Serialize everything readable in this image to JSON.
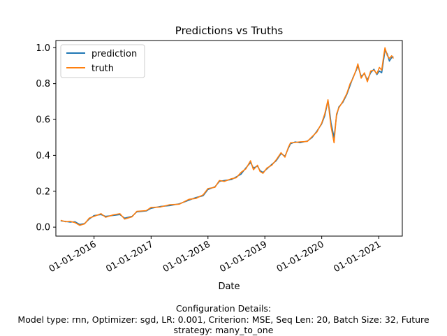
{
  "chart_data": {
    "type": "line",
    "title": "Predictions vs Truths",
    "xlabel": "Date",
    "ylabel": "",
    "xlim": [
      "2015-05-01",
      "2021-06-01"
    ],
    "ylim": [
      -0.05,
      1.04
    ],
    "x_ticks": [
      "01-01-2016",
      "01-01-2017",
      "01-01-2018",
      "01-01-2019",
      "01-01-2020",
      "01-01-2021"
    ],
    "y_ticks": [
      "0.0",
      "0.2",
      "0.4",
      "0.6",
      "0.8",
      "1.0"
    ],
    "y_tick_values": [
      0.0,
      0.2,
      0.4,
      0.6,
      0.8,
      1.0
    ],
    "grid": false,
    "legend": "top-left",
    "series": [
      {
        "name": "prediction",
        "color": "#1f77b4",
        "points": [
          [
            "2015-06-01",
            0.035
          ],
          [
            "2015-07-01",
            0.032
          ],
          [
            "2015-08-01",
            0.028
          ],
          [
            "2015-09-01",
            0.03
          ],
          [
            "2015-10-01",
            0.015
          ],
          [
            "2015-11-01",
            0.02
          ],
          [
            "2015-12-01",
            0.045
          ],
          [
            "2016-01-01",
            0.065
          ],
          [
            "2016-02-15",
            0.07
          ],
          [
            "2016-03-15",
            0.06
          ],
          [
            "2016-05-01",
            0.065
          ],
          [
            "2016-06-15",
            0.07
          ],
          [
            "2016-07-15",
            0.05
          ],
          [
            "2016-09-01",
            0.06
          ],
          [
            "2016-10-01",
            0.085
          ],
          [
            "2016-12-01",
            0.09
          ],
          [
            "2017-01-01",
            0.105
          ],
          [
            "2017-03-01",
            0.115
          ],
          [
            "2017-05-01",
            0.12
          ],
          [
            "2017-07-01",
            0.13
          ],
          [
            "2017-09-01",
            0.15
          ],
          [
            "2017-10-15",
            0.165
          ],
          [
            "2017-12-01",
            0.175
          ],
          [
            "2018-01-01",
            0.21
          ],
          [
            "2018-02-15",
            0.225
          ],
          [
            "2018-03-15",
            0.255
          ],
          [
            "2018-04-15",
            0.26
          ],
          [
            "2018-06-01",
            0.265
          ],
          [
            "2018-07-01",
            0.28
          ],
          [
            "2018-08-01",
            0.295
          ],
          [
            "2018-09-01",
            0.33
          ],
          [
            "2018-10-01",
            0.36
          ],
          [
            "2018-10-20",
            0.33
          ],
          [
            "2018-11-15",
            0.34
          ],
          [
            "2018-12-01",
            0.315
          ],
          [
            "2018-12-20",
            0.305
          ],
          [
            "2019-01-15",
            0.325
          ],
          [
            "2019-02-15",
            0.35
          ],
          [
            "2019-03-15",
            0.37
          ],
          [
            "2019-04-15",
            0.41
          ],
          [
            "2019-05-10",
            0.395
          ],
          [
            "2019-06-01",
            0.44
          ],
          [
            "2019-06-15",
            0.465
          ],
          [
            "2019-07-15",
            0.475
          ],
          [
            "2019-08-15",
            0.47
          ],
          [
            "2019-10-01",
            0.48
          ],
          [
            "2019-11-01",
            0.5
          ],
          [
            "2019-12-01",
            0.535
          ],
          [
            "2020-01-01",
            0.575
          ],
          [
            "2020-01-20",
            0.62
          ],
          [
            "2020-02-10",
            0.705
          ],
          [
            "2020-02-20",
            0.65
          ],
          [
            "2020-03-01",
            0.58
          ],
          [
            "2020-03-20",
            0.5
          ],
          [
            "2020-04-05",
            0.62
          ],
          [
            "2020-04-20",
            0.67
          ],
          [
            "2020-05-15",
            0.695
          ],
          [
            "2020-06-10",
            0.74
          ],
          [
            "2020-07-01",
            0.79
          ],
          [
            "2020-07-20",
            0.835
          ],
          [
            "2020-08-10",
            0.875
          ],
          [
            "2020-08-20",
            0.9
          ],
          [
            "2020-09-10",
            0.84
          ],
          [
            "2020-10-01",
            0.855
          ],
          [
            "2020-10-20",
            0.82
          ],
          [
            "2020-11-10",
            0.86
          ],
          [
            "2020-12-01",
            0.88
          ],
          [
            "2020-12-20",
            0.85
          ],
          [
            "2021-01-05",
            0.87
          ],
          [
            "2021-01-20",
            0.86
          ],
          [
            "2021-02-01",
            0.93
          ],
          [
            "2021-02-10",
            0.985
          ],
          [
            "2021-02-25",
            0.965
          ],
          [
            "2021-03-10",
            0.925
          ],
          [
            "2021-03-25",
            0.945
          ],
          [
            "2021-04-05",
            0.95
          ]
        ]
      },
      {
        "name": "truth",
        "color": "#ff7f0e",
        "points": [
          [
            "2015-06-01",
            0.038
          ],
          [
            "2015-07-01",
            0.03
          ],
          [
            "2015-08-01",
            0.032
          ],
          [
            "2015-09-01",
            0.025
          ],
          [
            "2015-10-01",
            0.01
          ],
          [
            "2015-11-01",
            0.018
          ],
          [
            "2015-12-01",
            0.05
          ],
          [
            "2016-01-01",
            0.06
          ],
          [
            "2016-02-15",
            0.075
          ],
          [
            "2016-03-15",
            0.055
          ],
          [
            "2016-05-01",
            0.068
          ],
          [
            "2016-06-15",
            0.075
          ],
          [
            "2016-07-15",
            0.045
          ],
          [
            "2016-09-01",
            0.058
          ],
          [
            "2016-10-01",
            0.088
          ],
          [
            "2016-12-01",
            0.092
          ],
          [
            "2017-01-01",
            0.11
          ],
          [
            "2017-03-01",
            0.112
          ],
          [
            "2017-05-01",
            0.125
          ],
          [
            "2017-07-01",
            0.128
          ],
          [
            "2017-09-01",
            0.155
          ],
          [
            "2017-10-15",
            0.16
          ],
          [
            "2017-12-01",
            0.18
          ],
          [
            "2018-01-01",
            0.215
          ],
          [
            "2018-02-15",
            0.222
          ],
          [
            "2018-03-15",
            0.26
          ],
          [
            "2018-04-15",
            0.255
          ],
          [
            "2018-06-01",
            0.27
          ],
          [
            "2018-07-01",
            0.275
          ],
          [
            "2018-08-01",
            0.305
          ],
          [
            "2018-09-01",
            0.325
          ],
          [
            "2018-10-01",
            0.37
          ],
          [
            "2018-10-20",
            0.32
          ],
          [
            "2018-11-15",
            0.345
          ],
          [
            "2018-12-01",
            0.31
          ],
          [
            "2018-12-20",
            0.3
          ],
          [
            "2019-01-15",
            0.33
          ],
          [
            "2019-02-15",
            0.345
          ],
          [
            "2019-03-15",
            0.375
          ],
          [
            "2019-04-15",
            0.415
          ],
          [
            "2019-05-10",
            0.39
          ],
          [
            "2019-06-01",
            0.445
          ],
          [
            "2019-06-15",
            0.47
          ],
          [
            "2019-07-15",
            0.472
          ],
          [
            "2019-08-15",
            0.475
          ],
          [
            "2019-10-01",
            0.478
          ],
          [
            "2019-11-01",
            0.505
          ],
          [
            "2019-12-01",
            0.53
          ],
          [
            "2020-01-01",
            0.58
          ],
          [
            "2020-01-20",
            0.63
          ],
          [
            "2020-02-10",
            0.71
          ],
          [
            "2020-02-20",
            0.63
          ],
          [
            "2020-03-01",
            0.56
          ],
          [
            "2020-03-20",
            0.47
          ],
          [
            "2020-04-05",
            0.63
          ],
          [
            "2020-04-20",
            0.665
          ],
          [
            "2020-05-15",
            0.7
          ],
          [
            "2020-06-10",
            0.745
          ],
          [
            "2020-07-01",
            0.8
          ],
          [
            "2020-07-20",
            0.83
          ],
          [
            "2020-08-10",
            0.88
          ],
          [
            "2020-08-20",
            0.91
          ],
          [
            "2020-09-10",
            0.83
          ],
          [
            "2020-10-01",
            0.86
          ],
          [
            "2020-10-20",
            0.81
          ],
          [
            "2020-11-10",
            0.87
          ],
          [
            "2020-12-01",
            0.875
          ],
          [
            "2020-12-20",
            0.855
          ],
          [
            "2021-01-05",
            0.89
          ],
          [
            "2021-01-20",
            0.875
          ],
          [
            "2021-02-01",
            0.95
          ],
          [
            "2021-02-10",
            1.0
          ],
          [
            "2021-02-25",
            0.955
          ],
          [
            "2021-03-10",
            0.94
          ],
          [
            "2021-03-25",
            0.955
          ],
          [
            "2021-04-05",
            0.94
          ]
        ]
      }
    ]
  },
  "caption": {
    "line1": "Configuration Details:",
    "line2": "Model type: rnn, Optimizer: sgd, LR: 0.001, Criterion: MSE, Seq Len: 20, Batch Size: 32, Future",
    "line3": "strategy: many_to_one"
  }
}
